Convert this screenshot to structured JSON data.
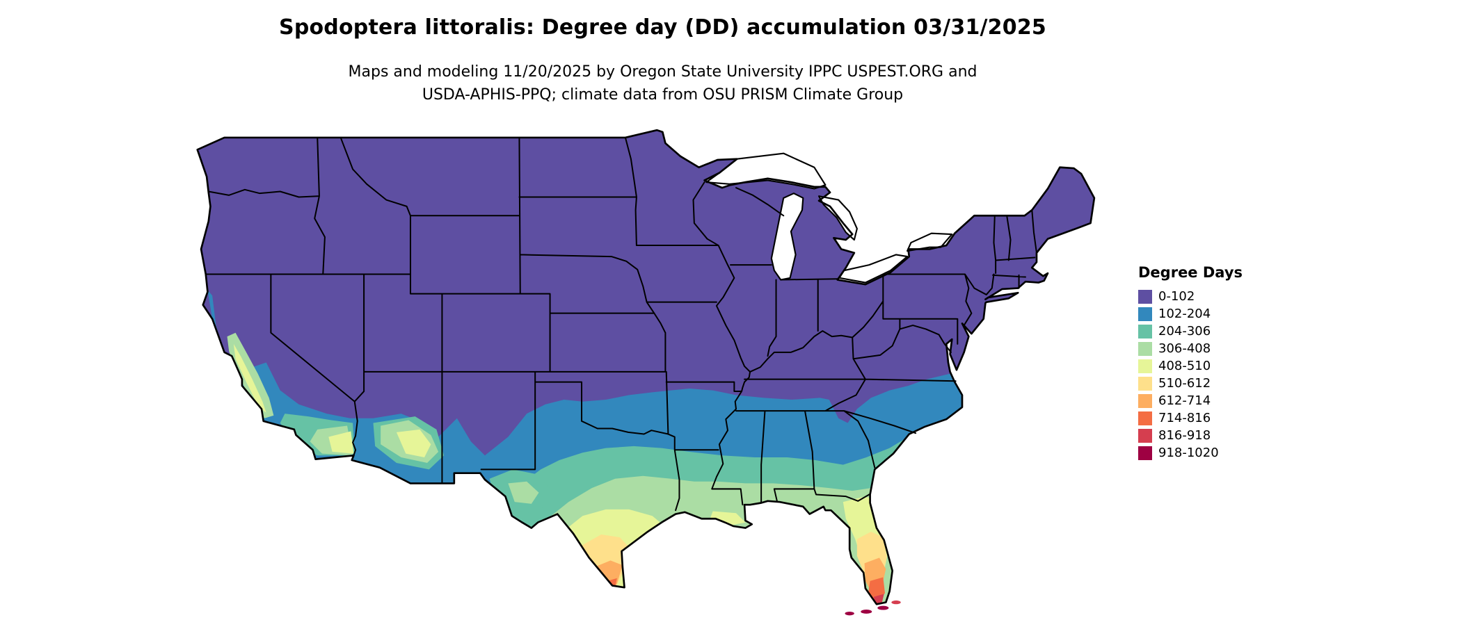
{
  "title": "Spodoptera littoralis: Degree day (DD) accumulation 03/31/2025",
  "subtitle": {
    "line1": "Maps and modeling 11/20/2025 by Oregon State University IPPC USPEST.ORG and",
    "line2": "USDA-APHIS-PPQ; climate data from OSU PRISM Climate Group"
  },
  "legend": {
    "title": "Degree Days",
    "items": [
      {
        "label": "0-102",
        "color": "#5e4fa2"
      },
      {
        "label": "102-204",
        "color": "#3288bd"
      },
      {
        "label": "204-306",
        "color": "#66c2a5"
      },
      {
        "label": "306-408",
        "color": "#abdda4"
      },
      {
        "label": "408-510",
        "color": "#e6f598"
      },
      {
        "label": "510-612",
        "color": "#fee08b"
      },
      {
        "label": "612-714",
        "color": "#fdae61"
      },
      {
        "label": "714-816",
        "color": "#f46d43"
      },
      {
        "label": "816-918",
        "color": "#d53e4f"
      },
      {
        "label": "918-1020",
        "color": "#9e0142"
      }
    ]
  },
  "map": {
    "name": "Contiguous United States degree-day choropleth",
    "lakes": [
      "Lake Superior",
      "Lake Michigan",
      "Lake Huron",
      "Lake Erie",
      "Lake Ontario"
    ]
  },
  "chart_data": {
    "type": "choropleth-map",
    "title": "Spodoptera littoralis: Degree day (DD) accumulation 03/31/2025",
    "variable": "Degree Days",
    "classes": [
      "0-102",
      "102-204",
      "204-306",
      "306-408",
      "408-510",
      "510-612",
      "612-714",
      "714-816",
      "816-918",
      "918-1020"
    ],
    "palette": [
      "#5e4fa2",
      "#3288bd",
      "#66c2a5",
      "#abdda4",
      "#e6f598",
      "#fee08b",
      "#fdae61",
      "#f46d43",
      "#d53e4f",
      "#9e0142"
    ],
    "legend_position": "right",
    "pattern": "Degree days lowest (0-102, purple) across the northern and interior US; values increase southward through Texas, the Gulf states and the Atlantic coast, reaching the highest classes in far south Texas and the southern tip of Florida / Keys"
  }
}
